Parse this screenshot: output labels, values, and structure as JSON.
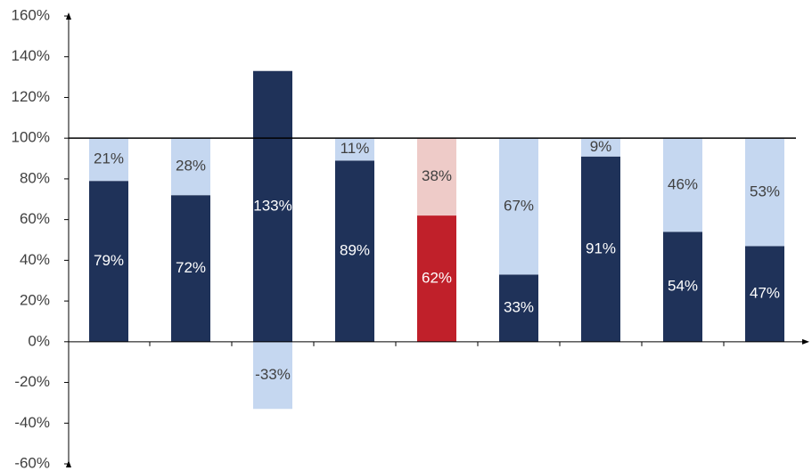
{
  "chart_data": {
    "type": "stacked_bar",
    "categories": [
      null,
      null,
      null,
      null,
      null,
      null,
      null,
      null,
      null
    ],
    "series": [
      {
        "colors": [
          "#1f3259",
          "#1f3259",
          "#1f3259",
          "#1f3259",
          "#c0202a",
          "#1f3259",
          "#1f3259",
          "#1f3259",
          "#1f3259"
        ],
        "label_color": "#ffffff",
        "values": [
          79,
          72,
          133,
          89,
          62,
          33,
          91,
          54,
          47
        ],
        "value_labels": [
          "79%",
          "72%",
          "133%",
          "89%",
          "62%",
          "33%",
          "91%",
          "54%",
          "47%"
        ]
      },
      {
        "colors": [
          "#c5d7f0",
          "#c5d7f0",
          "#c5d7f0",
          "#c5d7f0",
          "#eecbc8",
          "#c5d7f0",
          "#c5d7f0",
          "#c5d7f0",
          "#c5d7f0"
        ],
        "label_color": "#404040",
        "values": [
          21,
          28,
          -33,
          11,
          38,
          67,
          9,
          46,
          53
        ],
        "value_labels": [
          "21%",
          "28%",
          "-33%",
          "11%",
          "38%",
          "67%",
          "9%",
          "46%",
          "53%"
        ]
      }
    ],
    "ylim": [
      -60,
      160
    ],
    "yticks": [
      {
        "value": -60,
        "label": "-60%"
      },
      {
        "value": -40,
        "label": "-40%"
      },
      {
        "value": -20,
        "label": "-20%"
      },
      {
        "value": 0,
        "label": "0%"
      },
      {
        "value": 20,
        "label": "20%"
      },
      {
        "value": 40,
        "label": "40%"
      },
      {
        "value": 60,
        "label": "60%"
      },
      {
        "value": 80,
        "label": "80%"
      },
      {
        "value": 100,
        "label": "100%"
      },
      {
        "value": 120,
        "label": "120%"
      },
      {
        "value": 140,
        "label": "140%"
      },
      {
        "value": 160,
        "label": "160%"
      }
    ],
    "reference_line": 100,
    "grid": false
  }
}
